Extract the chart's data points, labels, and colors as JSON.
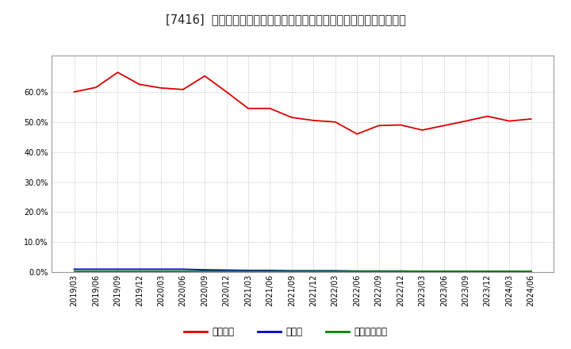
{
  "title": "[7416]  自己資本、のれん、繰延税金資産の総資産に対する比率の推移",
  "x_labels": [
    "2019/03",
    "2019/06",
    "2019/09",
    "2019/12",
    "2020/03",
    "2020/06",
    "2020/09",
    "2020/12",
    "2021/03",
    "2021/06",
    "2021/09",
    "2021/12",
    "2022/03",
    "2022/06",
    "2022/09",
    "2022/12",
    "2023/03",
    "2023/06",
    "2023/09",
    "2023/12",
    "2024/03",
    "2024/06"
  ],
  "equity_ratio": [
    0.6,
    0.615,
    0.665,
    0.625,
    0.613,
    0.608,
    0.653,
    0.6,
    0.545,
    0.545,
    0.515,
    0.505,
    0.5,
    0.46,
    0.488,
    0.49,
    0.473,
    0.488,
    0.503,
    0.519,
    0.503,
    0.51
  ],
  "goodwill_ratio": [
    0.01,
    0.01,
    0.01,
    0.01,
    0.01,
    0.01,
    0.008,
    0.007,
    0.006,
    0.006,
    0.005,
    0.005,
    0.005,
    0.004,
    0.004,
    0.004,
    0.003,
    0.003,
    0.003,
    0.003,
    0.003,
    0.002
  ],
  "deferred_tax_ratio": [
    0.002,
    0.002,
    0.002,
    0.002,
    0.002,
    0.002,
    0.002,
    0.002,
    0.002,
    0.002,
    0.002,
    0.002,
    0.002,
    0.002,
    0.002,
    0.002,
    0.002,
    0.002,
    0.002,
    0.002,
    0.002,
    0.002
  ],
  "equity_color": "#dd0000",
  "goodwill_color": "#0000cc",
  "deferred_tax_color": "#008800",
  "bg_color": "#ffffff",
  "plot_bg_color": "#ffffff",
  "grid_color": "#bbbbbb",
  "legend_labels": [
    "自己資本",
    "のれん",
    "繰延税金資産"
  ],
  "ylim": [
    0.0,
    0.72
  ],
  "yticks": [
    0.0,
    0.1,
    0.2,
    0.3,
    0.4,
    0.5,
    0.6
  ],
  "title_fontsize": 10.5,
  "tick_fontsize": 7,
  "legend_fontsize": 8.5
}
